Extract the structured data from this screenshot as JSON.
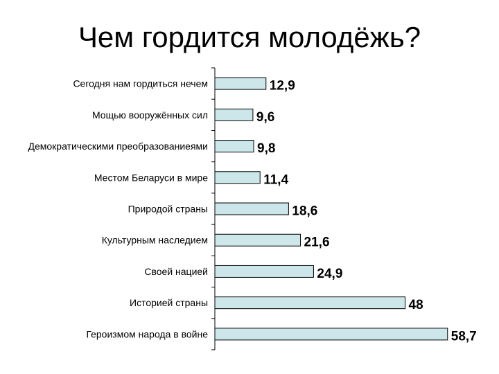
{
  "slide": {
    "title": "Чем гордится молодёжь?"
  },
  "chart_data": {
    "type": "bar",
    "orientation": "horizontal",
    "categories": [
      "Сегодня нам гордиться нечем",
      "Мощью вооружённых сил",
      "Демократическими преобразованиеями",
      "Местом Беларуси в мире",
      "Природой страны",
      "Культурным наследием",
      "Своей нацией",
      "Историей страны",
      "Героизмом народа в войне"
    ],
    "values": [
      12.9,
      9.6,
      9.8,
      11.4,
      18.6,
      21.6,
      24.9,
      48,
      58.7
    ],
    "value_labels": [
      "12,9",
      "9,6",
      "9,8",
      "11,4",
      "18,6",
      "21,6",
      "24,9",
      "48",
      "58,7"
    ],
    "xlim": [
      0,
      65
    ],
    "grid": false,
    "bar_color": "#cce6ea",
    "bar_outline": "#000000"
  }
}
